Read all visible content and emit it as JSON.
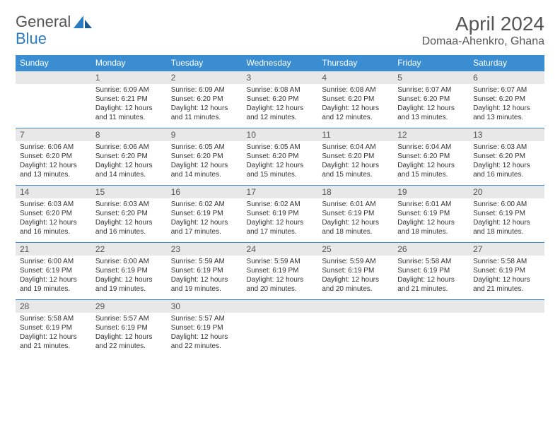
{
  "logo": {
    "part1": "General",
    "part2": "Blue"
  },
  "title": "April 2024",
  "location": "Domaa-Ahenkro, Ghana",
  "colors": {
    "header_bg": "#3a8dd0",
    "header_text": "#ffffff",
    "daynum_bg": "#e8e8e8",
    "row_border": "#3a8dd0",
    "text": "#333333",
    "title_text": "#555555",
    "logo_gray": "#555555",
    "logo_blue": "#2a7bc0"
  },
  "day_headers": [
    "Sunday",
    "Monday",
    "Tuesday",
    "Wednesday",
    "Thursday",
    "Friday",
    "Saturday"
  ],
  "weeks": [
    [
      {
        "empty": true
      },
      {
        "num": "1",
        "sunrise": "Sunrise: 6:09 AM",
        "sunset": "Sunset: 6:21 PM",
        "daylight": "Daylight: 12 hours and 11 minutes."
      },
      {
        "num": "2",
        "sunrise": "Sunrise: 6:09 AM",
        "sunset": "Sunset: 6:20 PM",
        "daylight": "Daylight: 12 hours and 11 minutes."
      },
      {
        "num": "3",
        "sunrise": "Sunrise: 6:08 AM",
        "sunset": "Sunset: 6:20 PM",
        "daylight": "Daylight: 12 hours and 12 minutes."
      },
      {
        "num": "4",
        "sunrise": "Sunrise: 6:08 AM",
        "sunset": "Sunset: 6:20 PM",
        "daylight": "Daylight: 12 hours and 12 minutes."
      },
      {
        "num": "5",
        "sunrise": "Sunrise: 6:07 AM",
        "sunset": "Sunset: 6:20 PM",
        "daylight": "Daylight: 12 hours and 13 minutes."
      },
      {
        "num": "6",
        "sunrise": "Sunrise: 6:07 AM",
        "sunset": "Sunset: 6:20 PM",
        "daylight": "Daylight: 12 hours and 13 minutes."
      }
    ],
    [
      {
        "num": "7",
        "sunrise": "Sunrise: 6:06 AM",
        "sunset": "Sunset: 6:20 PM",
        "daylight": "Daylight: 12 hours and 13 minutes."
      },
      {
        "num": "8",
        "sunrise": "Sunrise: 6:06 AM",
        "sunset": "Sunset: 6:20 PM",
        "daylight": "Daylight: 12 hours and 14 minutes."
      },
      {
        "num": "9",
        "sunrise": "Sunrise: 6:05 AM",
        "sunset": "Sunset: 6:20 PM",
        "daylight": "Daylight: 12 hours and 14 minutes."
      },
      {
        "num": "10",
        "sunrise": "Sunrise: 6:05 AM",
        "sunset": "Sunset: 6:20 PM",
        "daylight": "Daylight: 12 hours and 15 minutes."
      },
      {
        "num": "11",
        "sunrise": "Sunrise: 6:04 AM",
        "sunset": "Sunset: 6:20 PM",
        "daylight": "Daylight: 12 hours and 15 minutes."
      },
      {
        "num": "12",
        "sunrise": "Sunrise: 6:04 AM",
        "sunset": "Sunset: 6:20 PM",
        "daylight": "Daylight: 12 hours and 15 minutes."
      },
      {
        "num": "13",
        "sunrise": "Sunrise: 6:03 AM",
        "sunset": "Sunset: 6:20 PM",
        "daylight": "Daylight: 12 hours and 16 minutes."
      }
    ],
    [
      {
        "num": "14",
        "sunrise": "Sunrise: 6:03 AM",
        "sunset": "Sunset: 6:20 PM",
        "daylight": "Daylight: 12 hours and 16 minutes."
      },
      {
        "num": "15",
        "sunrise": "Sunrise: 6:03 AM",
        "sunset": "Sunset: 6:20 PM",
        "daylight": "Daylight: 12 hours and 16 minutes."
      },
      {
        "num": "16",
        "sunrise": "Sunrise: 6:02 AM",
        "sunset": "Sunset: 6:19 PM",
        "daylight": "Daylight: 12 hours and 17 minutes."
      },
      {
        "num": "17",
        "sunrise": "Sunrise: 6:02 AM",
        "sunset": "Sunset: 6:19 PM",
        "daylight": "Daylight: 12 hours and 17 minutes."
      },
      {
        "num": "18",
        "sunrise": "Sunrise: 6:01 AM",
        "sunset": "Sunset: 6:19 PM",
        "daylight": "Daylight: 12 hours and 18 minutes."
      },
      {
        "num": "19",
        "sunrise": "Sunrise: 6:01 AM",
        "sunset": "Sunset: 6:19 PM",
        "daylight": "Daylight: 12 hours and 18 minutes."
      },
      {
        "num": "20",
        "sunrise": "Sunrise: 6:00 AM",
        "sunset": "Sunset: 6:19 PM",
        "daylight": "Daylight: 12 hours and 18 minutes."
      }
    ],
    [
      {
        "num": "21",
        "sunrise": "Sunrise: 6:00 AM",
        "sunset": "Sunset: 6:19 PM",
        "daylight": "Daylight: 12 hours and 19 minutes."
      },
      {
        "num": "22",
        "sunrise": "Sunrise: 6:00 AM",
        "sunset": "Sunset: 6:19 PM",
        "daylight": "Daylight: 12 hours and 19 minutes."
      },
      {
        "num": "23",
        "sunrise": "Sunrise: 5:59 AM",
        "sunset": "Sunset: 6:19 PM",
        "daylight": "Daylight: 12 hours and 19 minutes."
      },
      {
        "num": "24",
        "sunrise": "Sunrise: 5:59 AM",
        "sunset": "Sunset: 6:19 PM",
        "daylight": "Daylight: 12 hours and 20 minutes."
      },
      {
        "num": "25",
        "sunrise": "Sunrise: 5:59 AM",
        "sunset": "Sunset: 6:19 PM",
        "daylight": "Daylight: 12 hours and 20 minutes."
      },
      {
        "num": "26",
        "sunrise": "Sunrise: 5:58 AM",
        "sunset": "Sunset: 6:19 PM",
        "daylight": "Daylight: 12 hours and 21 minutes."
      },
      {
        "num": "27",
        "sunrise": "Sunrise: 5:58 AM",
        "sunset": "Sunset: 6:19 PM",
        "daylight": "Daylight: 12 hours and 21 minutes."
      }
    ],
    [
      {
        "num": "28",
        "sunrise": "Sunrise: 5:58 AM",
        "sunset": "Sunset: 6:19 PM",
        "daylight": "Daylight: 12 hours and 21 minutes."
      },
      {
        "num": "29",
        "sunrise": "Sunrise: 5:57 AM",
        "sunset": "Sunset: 6:19 PM",
        "daylight": "Daylight: 12 hours and 22 minutes."
      },
      {
        "num": "30",
        "sunrise": "Sunrise: 5:57 AM",
        "sunset": "Sunset: 6:19 PM",
        "daylight": "Daylight: 12 hours and 22 minutes."
      },
      {
        "empty": true
      },
      {
        "empty": true
      },
      {
        "empty": true
      },
      {
        "empty": true
      }
    ]
  ]
}
